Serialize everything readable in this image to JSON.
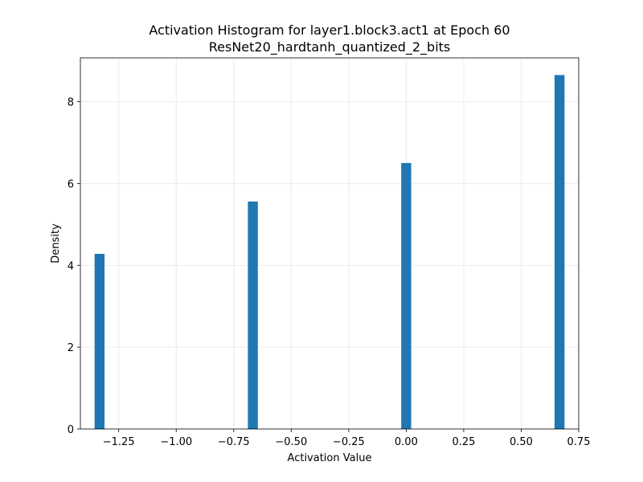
{
  "chart_data": {
    "type": "bar",
    "title": "Activation Histogram for layer1.block3.act1 at Epoch 60",
    "subtitle": "ResNet20_hardtanh_quantized_2_bits",
    "xlabel": "Activation Value",
    "ylabel": "Density",
    "xlim": [
      -1.4167,
      0.75
    ],
    "ylim": [
      0,
      9.07
    ],
    "bin_width": 0.0433,
    "bars": [
      {
        "x": -1.3333,
        "value": 4.28
      },
      {
        "x": -0.6667,
        "value": 5.56
      },
      {
        "x": 0.0,
        "value": 6.5
      },
      {
        "x": 0.6667,
        "value": 8.65
      }
    ],
    "x_ticks": [
      {
        "value": -1.25,
        "label": "−1.25"
      },
      {
        "value": -1.0,
        "label": "−1.00"
      },
      {
        "value": -0.75,
        "label": "−0.75"
      },
      {
        "value": -0.5,
        "label": "−0.50"
      },
      {
        "value": -0.25,
        "label": "−0.25"
      },
      {
        "value": 0.0,
        "label": "0.00"
      },
      {
        "value": 0.25,
        "label": "0.25"
      },
      {
        "value": 0.5,
        "label": "0.50"
      },
      {
        "value": 0.75,
        "label": "0.75"
      }
    ],
    "y_ticks": [
      {
        "value": 0,
        "label": "0"
      },
      {
        "value": 2,
        "label": "2"
      },
      {
        "value": 4,
        "label": "4"
      },
      {
        "value": 6,
        "label": "6"
      },
      {
        "value": 8,
        "label": "8"
      }
    ],
    "grid": true,
    "bar_color": "#1f77b4"
  }
}
